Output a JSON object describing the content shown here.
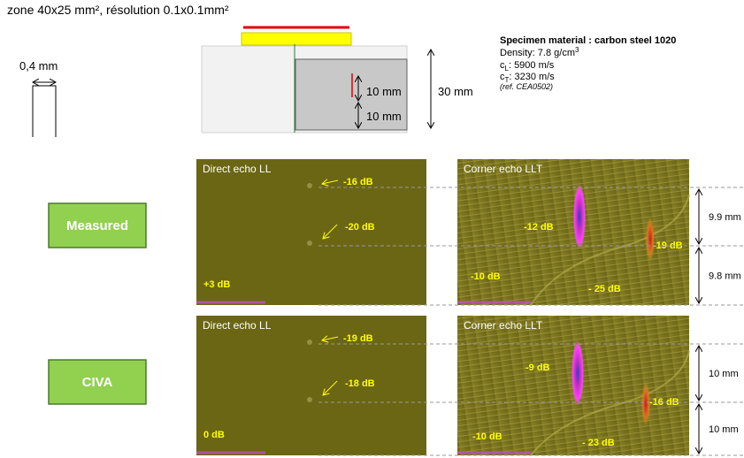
{
  "header": {
    "title": "zone 40x25 mm², résolution 0.1x0.1mm²"
  },
  "probe": {
    "width_label": "0,4 mm"
  },
  "specimen_sketch": {
    "dim_upper": "10 mm",
    "dim_lower": "10 mm",
    "dim_total": "30 mm"
  },
  "material": {
    "title": "Specimen material : carbon steel 1020",
    "density": {
      "text": "Density: 7.8 g/cm",
      "sup": "3"
    },
    "cl": {
      "text": "c",
      "sub": "L",
      "rest": ": 5900 m/s"
    },
    "ct": {
      "text": "c",
      "sub": "T",
      "rest": ": 3230 m/s"
    },
    "ref": "(ref. CEA0502)"
  },
  "rows": [
    {
      "label": "Measured",
      "direct": {
        "title": "Direct echo LL",
        "upper": "-16 dB",
        "lower": "-20 dB",
        "gain": "+3 dB"
      },
      "corner": {
        "title": "Corner echo LLT",
        "tip": "-12 dB",
        "back": "-19 dB",
        "left": "-10 dB",
        "bottom": "- 25 dB"
      },
      "dim_upper": "9.9 mm",
      "dim_lower": "9.8 mm"
    },
    {
      "label": "CIVA",
      "direct": {
        "title": "Direct echo LL",
        "upper": "-19 dB",
        "lower": "-18 dB",
        "gain": "0 dB"
      },
      "corner": {
        "title": "Corner echo LLT",
        "tip": "-9 dB",
        "back": "-16 dB",
        "left": "-10 dB",
        "bottom": "- 23 dB"
      },
      "dim_upper": "10 mm",
      "dim_lower": "10 mm"
    }
  ]
}
